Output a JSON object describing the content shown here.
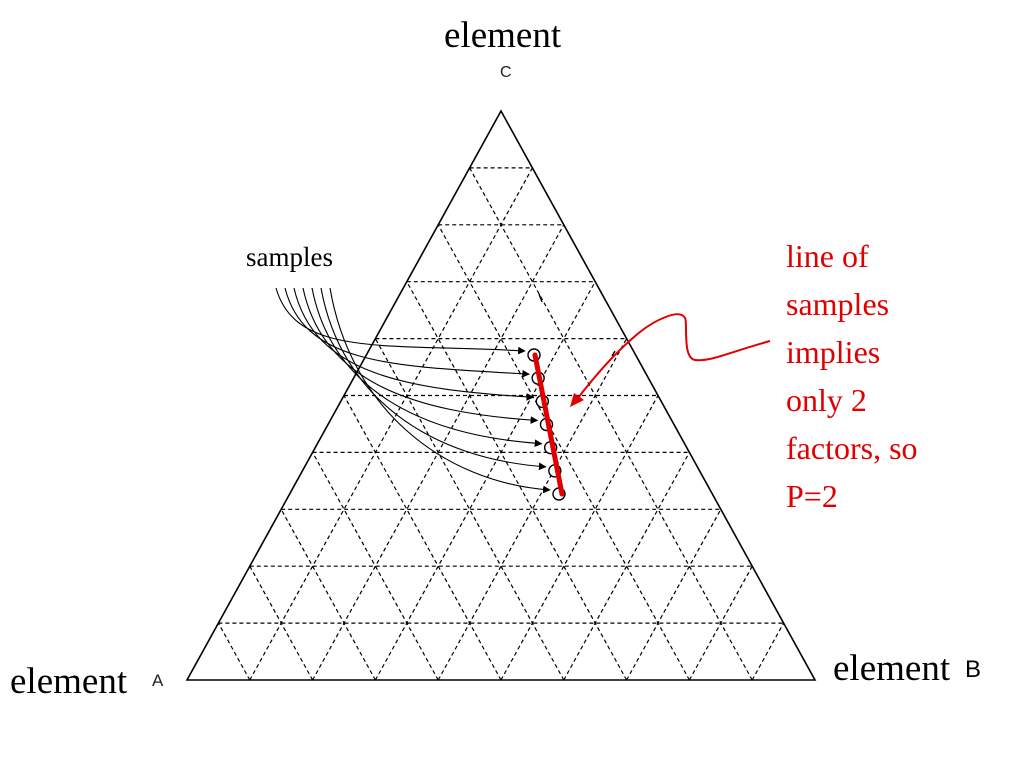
{
  "title": "element",
  "vertices": {
    "top": "C",
    "left_word": "element",
    "left": "A",
    "right_word": "element",
    "right": "B"
  },
  "samples_label": "samples",
  "annotation_lines": [
    "line of",
    "samples",
    "implies",
    "only 2",
    "factors, so",
    "P=2"
  ],
  "colors": {
    "annotation": "#e00000",
    "grid": "#000000",
    "outline": "#000000"
  },
  "sample_count": 7
}
